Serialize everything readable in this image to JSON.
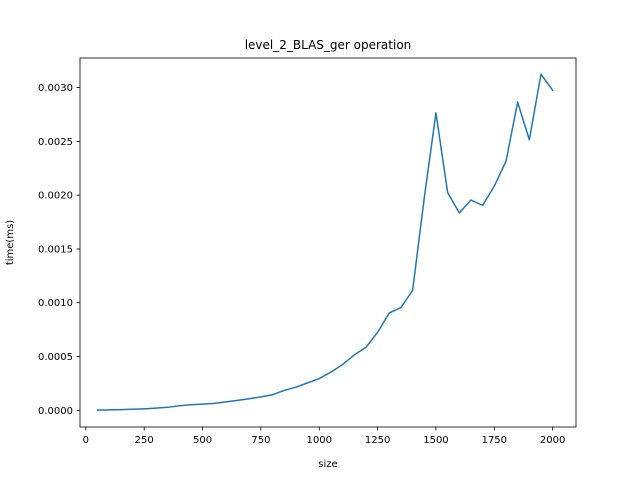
{
  "chart_data": {
    "type": "line",
    "title": "level_2_BLAS_ger operation",
    "xlabel": "size",
    "ylabel": "time(ms)",
    "xlim": [
      -25,
      2100
    ],
    "ylim": [
      -0.000155,
      0.003275
    ],
    "xticks": [
      0,
      250,
      500,
      750,
      1000,
      1250,
      1500,
      1750,
      2000
    ],
    "xtick_labels": [
      "0",
      "250",
      "500",
      "750",
      "1000",
      "1250",
      "1500",
      "1750",
      "2000"
    ],
    "yticks": [
      0,
      0.0005,
      0.001,
      0.0015,
      0.002,
      0.0025,
      0.003
    ],
    "ytick_labels": [
      "0.0000",
      "0.0005",
      "0.0010",
      "0.0015",
      "0.0020",
      "0.0025",
      "0.0030"
    ],
    "grid": false,
    "color": "#1f77b4",
    "series": [
      {
        "x": [
          50,
          100,
          150,
          200,
          250,
          300,
          350,
          400,
          450,
          500,
          550,
          600,
          650,
          700,
          750,
          800,
          850,
          900,
          950,
          1000,
          1050,
          1100,
          1150,
          1200,
          1250,
          1300,
          1350,
          1400,
          1450,
          1500,
          1550,
          1600,
          1650,
          1700,
          1750,
          1800,
          1850,
          1900,
          1950,
          2000
        ],
        "y": [
          2e-06,
          4e-06,
          7e-06,
          1e-05,
          1.4e-05,
          2e-05,
          2.8e-05,
          4.2e-05,
          5.2e-05,
          5.8e-05,
          6.5e-05,
          7.8e-05,
          9.2e-05,
          0.000108,
          0.000125,
          0.000145,
          0.000185,
          0.000215,
          0.000255,
          0.000295,
          0.000355,
          0.000425,
          0.000515,
          0.000585,
          0.000725,
          0.000905,
          0.000955,
          0.001115,
          0.001975,
          0.002765,
          0.002025,
          0.001835,
          0.001955,
          0.001905,
          0.002085,
          0.002315,
          0.002865,
          0.002515,
          0.003125,
          0.002975
        ]
      }
    ]
  }
}
